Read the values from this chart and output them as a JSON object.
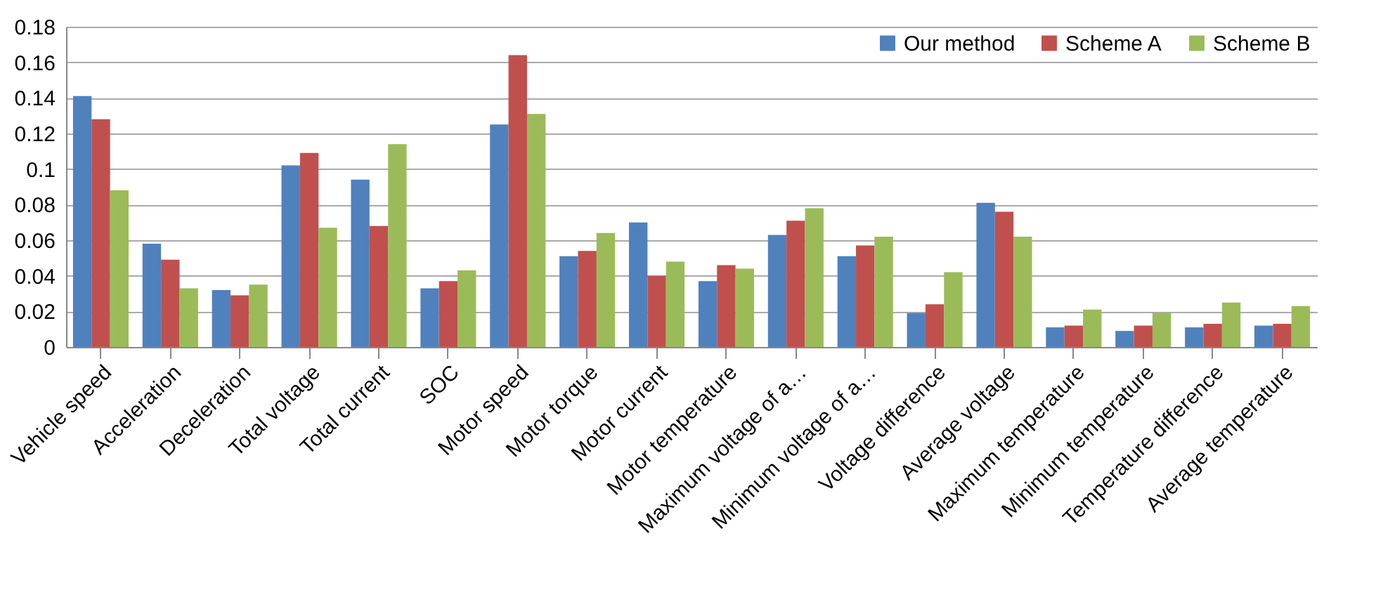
{
  "chart_data": {
    "type": "bar",
    "categories": [
      "Vehicle speed",
      "Acceleration",
      "Deceleration",
      "Total voltage",
      "Total current",
      "SOC",
      "Motor speed",
      "Motor torque",
      "Motor current",
      "Motor temperature",
      "Maximum voltage of a…",
      "Minimum voltage of a…",
      "Voltage difference",
      "Average voltage",
      "Maximum temperature",
      "Minimum temperature",
      "Temperature difference",
      "Average temperature"
    ],
    "series": [
      {
        "name": "Our method",
        "color": "#4f81bd",
        "values": [
          0.141,
          0.058,
          0.032,
          0.102,
          0.094,
          0.033,
          0.125,
          0.051,
          0.07,
          0.037,
          0.063,
          0.051,
          0.019,
          0.081,
          0.011,
          0.009,
          0.011,
          0.012
        ]
      },
      {
        "name": "Scheme A",
        "color": "#c0504d",
        "values": [
          0.128,
          0.049,
          0.029,
          0.109,
          0.068,
          0.037,
          0.164,
          0.054,
          0.04,
          0.046,
          0.071,
          0.057,
          0.024,
          0.076,
          0.012,
          0.012,
          0.013,
          0.013
        ]
      },
      {
        "name": "Scheme B",
        "color": "#9bbb59",
        "values": [
          0.088,
          0.033,
          0.035,
          0.067,
          0.114,
          0.043,
          0.131,
          0.064,
          0.048,
          0.044,
          0.078,
          0.062,
          0.042,
          0.062,
          0.021,
          0.019,
          0.025,
          0.023
        ]
      }
    ],
    "ylim": [
      0,
      0.18
    ],
    "yticks": [
      0,
      0.02,
      0.04,
      0.06,
      0.08,
      0.1,
      0.12,
      0.14,
      0.16,
      0.18
    ],
    "grid": "y",
    "legend": "top right"
  }
}
